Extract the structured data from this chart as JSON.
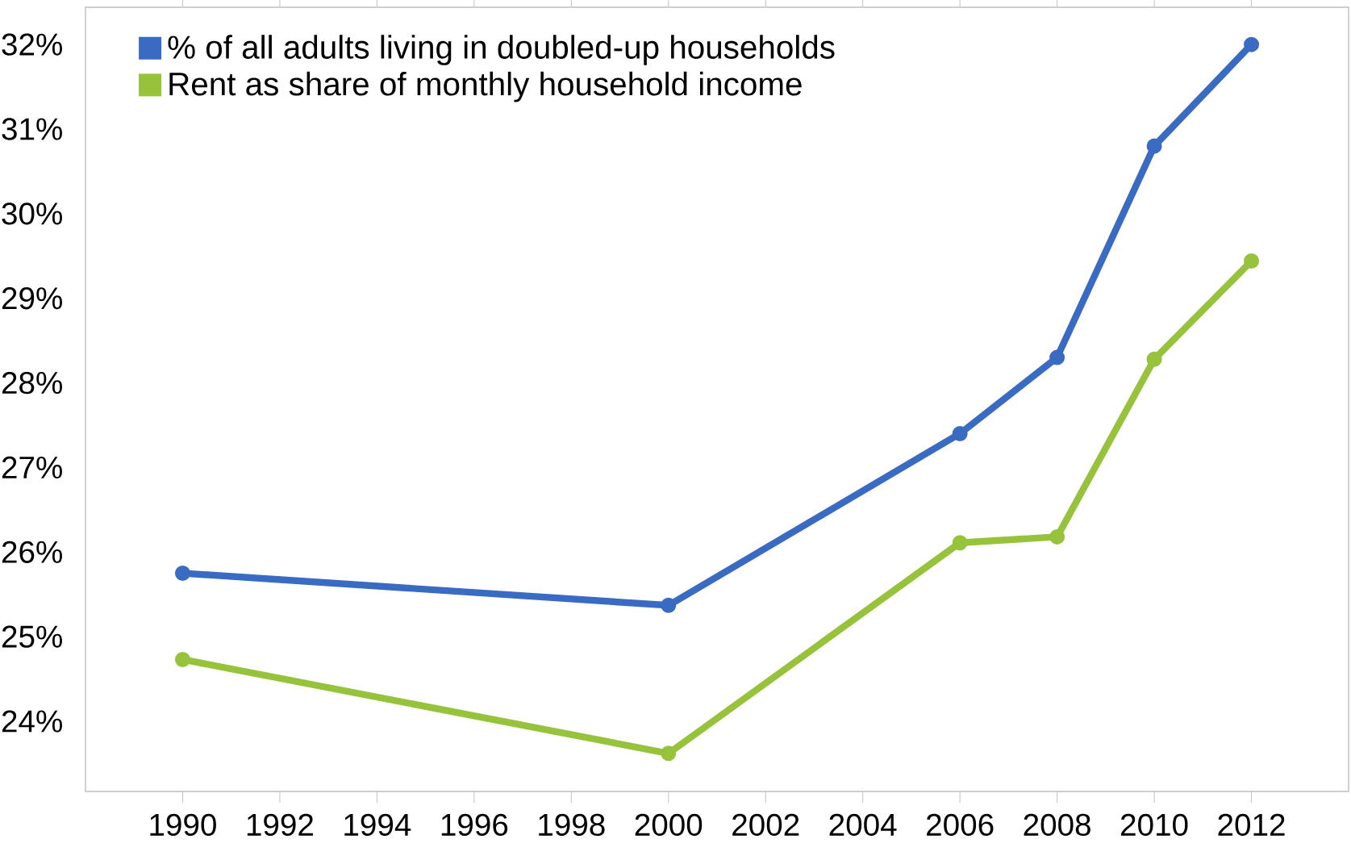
{
  "chart_data": {
    "type": "line",
    "x": [
      1990,
      2000,
      2006,
      2008,
      2010,
      2012
    ],
    "series": [
      {
        "name": "% of all adults living in doubled-up households",
        "color": "#3a6bc3",
        "values": [
          25.75,
          25.37,
          27.4,
          28.3,
          30.8,
          32.0
        ]
      },
      {
        "name": "Rent as share of monthly household income",
        "color": "#97c23c",
        "values": [
          24.73,
          23.62,
          26.11,
          26.18,
          28.28,
          29.44
        ]
      }
    ],
    "xlim": [
      1988,
      2014
    ],
    "xticks": [
      1990,
      1992,
      1994,
      1996,
      1998,
      2000,
      2002,
      2004,
      2006,
      2008,
      2010,
      2012
    ],
    "ylim": [
      23.17,
      32.44
    ],
    "yticks": [
      {
        "value": 24,
        "label": "24%"
      },
      {
        "value": 25,
        "label": "25%"
      },
      {
        "value": 26,
        "label": "26%"
      },
      {
        "value": 27,
        "label": "27%"
      },
      {
        "value": 28,
        "label": "28%"
      },
      {
        "value": 29,
        "label": "29%"
      },
      {
        "value": 30,
        "label": "30%"
      },
      {
        "value": 31,
        "label": "31%"
      },
      {
        "value": 32,
        "label": "32%"
      }
    ],
    "grid": false,
    "legend": "top left",
    "marker": "circle",
    "line_style": "solid"
  }
}
